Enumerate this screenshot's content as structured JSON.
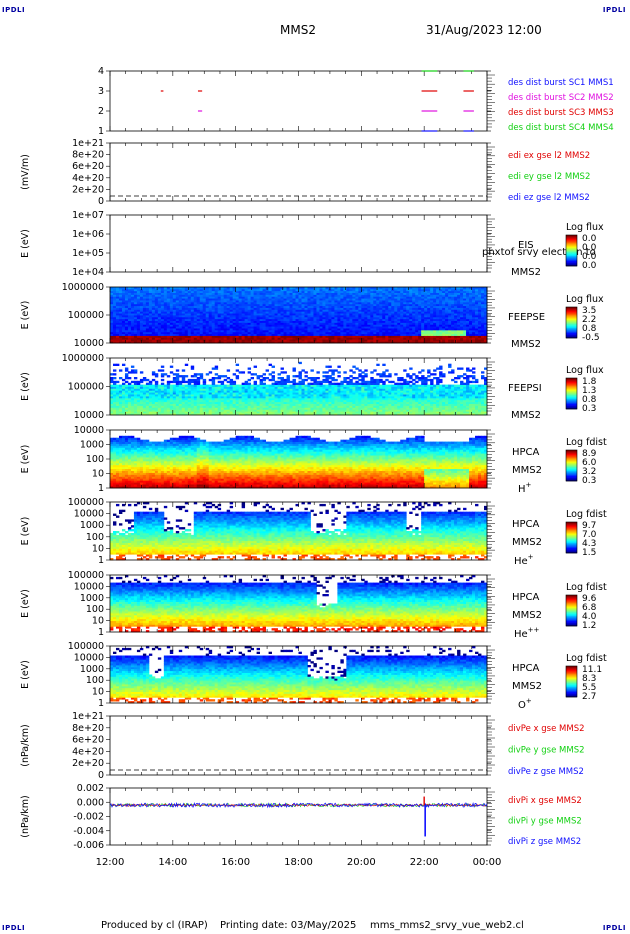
{
  "header": {
    "corner_label": "IPDLI",
    "spacecraft": "MMS2",
    "datetime": "31/Aug/2023 12:00"
  },
  "footer": {
    "produced_by": "Produced by cl (IRAP)",
    "printing_date": "Printing date: 03/May/2025",
    "script_name": "mms_mms2_srvy_vue_web2.cl"
  },
  "colors": {
    "blue": "#1010ff",
    "magenta": "#e010e0",
    "red": "#e00000",
    "green": "#10d010"
  },
  "chart_data": [
    {
      "id": "burst",
      "type": "scatter",
      "ylabel": "",
      "yticks": [
        "1",
        "2",
        "3",
        "4"
      ],
      "legend": [
        {
          "text": "des dist burst SC1 MMS1",
          "color": "#1010ff"
        },
        {
          "text": "des dist burst SC2 MMS2",
          "color": "#e010e0"
        },
        {
          "text": "des dist burst SC3 MMS3",
          "color": "#e00000"
        },
        {
          "text": "des dist burst SC4 MMS4",
          "color": "#10d010"
        }
      ],
      "segments": [
        {
          "y": 3,
          "start": "13:37",
          "end": "13:42",
          "color": "#e00000"
        },
        {
          "y": 3,
          "start": "14:48",
          "end": "14:56",
          "color": "#e00000"
        },
        {
          "y": 2,
          "start": "14:48",
          "end": "14:56",
          "color": "#e010e0"
        },
        {
          "y": 4,
          "start": "21:55",
          "end": "22:25",
          "color": "#10d010"
        },
        {
          "y": 3,
          "start": "21:55",
          "end": "22:25",
          "color": "#e00000"
        },
        {
          "y": 2,
          "start": "21:55",
          "end": "22:25",
          "color": "#e010e0"
        },
        {
          "y": 1,
          "start": "21:55",
          "end": "22:25",
          "color": "#1010ff"
        },
        {
          "y": 4,
          "start": "23:15",
          "end": "23:35",
          "color": "#10d010"
        },
        {
          "y": 3,
          "start": "23:15",
          "end": "23:35",
          "color": "#e00000"
        },
        {
          "y": 2,
          "start": "23:15",
          "end": "23:35",
          "color": "#e010e0"
        },
        {
          "y": 1,
          "start": "23:15",
          "end": "23:35",
          "color": "#1010ff"
        }
      ]
    },
    {
      "id": "edi",
      "type": "line",
      "ylabel": "(mV/m)",
      "yticks": [
        "0",
        "2e+20",
        "4e+20",
        "6e+20",
        "8e+20",
        "1e+21"
      ],
      "dashed_zero": true,
      "legend": [
        {
          "text": "edi ex gse l2 MMS2",
          "color": "#e00000"
        },
        {
          "text": "edi ey gse l2 MMS2",
          "color": "#10d010"
        },
        {
          "text": "edi ez gse l2 MMS2",
          "color": "#1010ff"
        }
      ]
    },
    {
      "id": "eis",
      "type": "heatmap",
      "ylabel": "E (eV)",
      "yticks": [
        "1e+04",
        "1e+05",
        "1e+06",
        "1e+07"
      ],
      "label_lines": [
        "EIS",
        "MMS2"
      ],
      "overlay_text": "phxtof srvy electron to",
      "colorbar_title": "Log flux",
      "colorbar_ticks": [
        "0.0",
        "0.0",
        "0.0",
        "0.0"
      ],
      "fill": "empty"
    },
    {
      "id": "feeps_e",
      "type": "heatmap",
      "ylabel": "E (eV)",
      "yticks": [
        "10000",
        "100000",
        "1000000"
      ],
      "label_lines": [
        "FEEPSE",
        "MMS2"
      ],
      "colorbar_title": "Log flux",
      "colorbar_ticks": [
        "3.5",
        "2.2",
        "0.8",
        "-0.5"
      ],
      "fill": "feeps_e"
    },
    {
      "id": "feeps_i",
      "type": "heatmap",
      "ylabel": "E (eV)",
      "yticks": [
        "10000",
        "100000",
        "1000000"
      ],
      "label_lines": [
        "FEEPSI",
        "MMS2"
      ],
      "colorbar_title": "Log flux",
      "colorbar_ticks": [
        "1.8",
        "1.3",
        "0.8",
        "0.3"
      ],
      "fill": "feeps_i"
    },
    {
      "id": "hpca_h",
      "type": "heatmap",
      "ylabel": "E (eV)",
      "yticks": [
        "1",
        "10",
        "100",
        "1000",
        "10000"
      ],
      "label_lines": [
        "HPCA",
        "MMS2"
      ],
      "species": "H",
      "species_sup": "+",
      "colorbar_title": "Log fdist",
      "colorbar_ticks": [
        "8.9",
        "6.0",
        "3.2",
        "0.3"
      ],
      "fill": "hpca_h"
    },
    {
      "id": "hpca_he1",
      "type": "heatmap",
      "ylabel": "E (eV)",
      "yticks": [
        "1",
        "10",
        "100",
        "1000",
        "10000",
        "100000"
      ],
      "label_lines": [
        "HPCA",
        "MMS2"
      ],
      "species": "He",
      "species_sup": "+",
      "colorbar_title": "Log fdist",
      "colorbar_ticks": [
        "9.7",
        "7.0",
        "4.3",
        "1.5"
      ],
      "fill": "hpca_he1"
    },
    {
      "id": "hpca_he2",
      "type": "heatmap",
      "ylabel": "E (eV)",
      "yticks": [
        "1",
        "10",
        "100",
        "1000",
        "10000",
        "100000"
      ],
      "label_lines": [
        "HPCA",
        "MMS2"
      ],
      "species": "He",
      "species_sup": "++",
      "colorbar_title": "Log fdist",
      "colorbar_ticks": [
        "9.6",
        "6.8",
        "4.0",
        "1.2"
      ],
      "fill": "hpca_he2"
    },
    {
      "id": "hpca_o",
      "type": "heatmap",
      "ylabel": "E (eV)",
      "yticks": [
        "1",
        "10",
        "100",
        "1000",
        "10000",
        "100000"
      ],
      "label_lines": [
        "HPCA",
        "MMS2"
      ],
      "species": "O",
      "species_sup": "+",
      "colorbar_title": "Log fdist",
      "colorbar_ticks": [
        "11.1",
        "8.3",
        "5.5",
        "2.7"
      ],
      "fill": "hpca_o"
    },
    {
      "id": "divpe",
      "type": "line",
      "ylabel": "(nPa/km)",
      "yticks": [
        "0",
        "2e+20",
        "4e+20",
        "6e+20",
        "8e+20",
        "1e+21"
      ],
      "dashed_zero": true,
      "legend": [
        {
          "text": "divPe x gse MMS2",
          "color": "#e00000"
        },
        {
          "text": "divPe y gse MMS2",
          "color": "#10d010"
        },
        {
          "text": "divPe z gse MMS2",
          "color": "#1010ff"
        }
      ]
    },
    {
      "id": "divpi",
      "type": "line",
      "ylabel": "(nPa/km)",
      "yticks": [
        "-0.006",
        "-0.004",
        "-0.002",
        "0.000",
        "0.002"
      ],
      "ylim": [
        -0.007,
        0.003
      ],
      "spike_time": "22:00",
      "spike_min": -0.0055,
      "spike_max": 0.0015,
      "legend": [
        {
          "text": "divPi x gse MMS2",
          "color": "#e00000"
        },
        {
          "text": "divPi y gse MMS2",
          "color": "#10d010"
        },
        {
          "text": "divPi z gse MMS2",
          "color": "#1010ff"
        }
      ]
    }
  ],
  "time_axis": {
    "ticks": [
      "12:00",
      "14:00",
      "16:00",
      "18:00",
      "20:00",
      "22:00",
      "00:00"
    ],
    "start": "12:00",
    "end": "00:00"
  }
}
